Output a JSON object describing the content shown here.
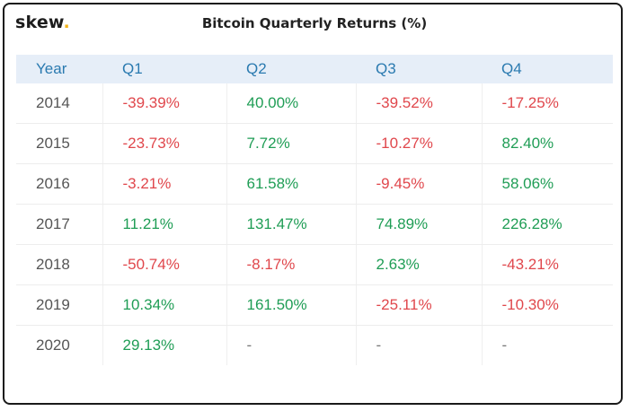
{
  "header": {
    "logo_text": "skew",
    "logo_dot": ".",
    "title": "Bitcoin Quarterly Returns (%)"
  },
  "colors": {
    "negative": "#e0474c",
    "positive": "#1f9d55",
    "header_text": "#2a7ab0",
    "header_bg": "#e6eef8",
    "logo_dot": "#f2b319"
  },
  "chart_data": {
    "type": "table",
    "title": "Bitcoin Quarterly Returns (%)",
    "columns": [
      "Year",
      "Q1",
      "Q2",
      "Q3",
      "Q4"
    ],
    "rows": [
      {
        "year": "2014",
        "values": [
          "-39.39%",
          "40.00%",
          "-39.52%",
          "-17.25%"
        ]
      },
      {
        "year": "2015",
        "values": [
          "-23.73%",
          "7.72%",
          "-10.27%",
          "82.40%"
        ]
      },
      {
        "year": "2016",
        "values": [
          "-3.21%",
          "61.58%",
          "-9.45%",
          "58.06%"
        ]
      },
      {
        "year": "2017",
        "values": [
          "11.21%",
          "131.47%",
          "74.89%",
          "226.28%"
        ]
      },
      {
        "year": "2018",
        "values": [
          "-50.74%",
          "-8.17%",
          "2.63%",
          "-43.21%"
        ]
      },
      {
        "year": "2019",
        "values": [
          "10.34%",
          "161.50%",
          "-25.11%",
          "-10.30%"
        ]
      },
      {
        "year": "2020",
        "values": [
          "29.13%",
          "-",
          "-",
          "-"
        ]
      }
    ]
  }
}
